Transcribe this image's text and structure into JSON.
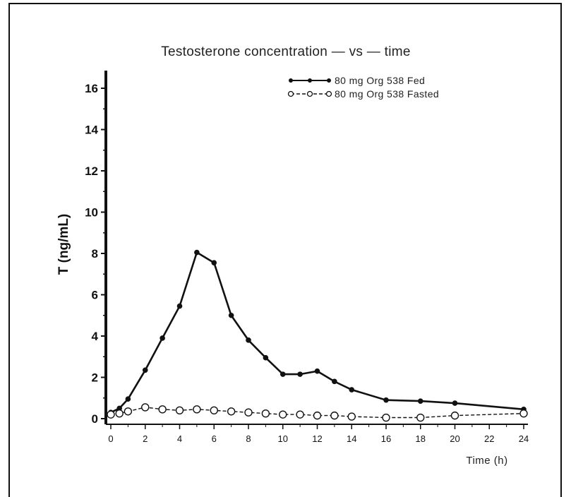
{
  "chart_data": {
    "type": "line",
    "title": "Testosterone  concentration — vs — time",
    "xlabel": "Time  (h)",
    "ylabel": "T (ng/mL)",
    "xlim": [
      0,
      24
    ],
    "ylim": [
      0,
      16
    ],
    "x_ticks": [
      0,
      2,
      4,
      6,
      8,
      10,
      12,
      14,
      16,
      18,
      20,
      22,
      24
    ],
    "y_ticks": [
      0,
      2,
      4,
      6,
      8,
      10,
      12,
      14,
      16
    ],
    "grid": false,
    "legend_position": "top-right",
    "series": [
      {
        "name": "80  mg  Org  538  Fed",
        "style": "solid",
        "marker": "filled-circle",
        "x": [
          0,
          0.5,
          1,
          2,
          3,
          4,
          5,
          6,
          7,
          8,
          9,
          10,
          11,
          12,
          13,
          14,
          16,
          18,
          20,
          24
        ],
        "y": [
          0.3,
          0.5,
          0.95,
          2.35,
          3.9,
          5.45,
          8.05,
          7.55,
          5.0,
          3.8,
          2.95,
          2.15,
          2.15,
          2.3,
          1.8,
          1.4,
          0.9,
          0.85,
          0.75,
          0.45
        ]
      },
      {
        "name": "80  mg  Org  538  Fasted",
        "style": "dashed",
        "marker": "open-circle",
        "x": [
          0,
          0.5,
          1,
          2,
          3,
          4,
          5,
          6,
          7,
          8,
          9,
          10,
          11,
          12,
          13,
          14,
          16,
          18,
          20,
          24
        ],
        "y": [
          0.2,
          0.25,
          0.35,
          0.55,
          0.45,
          0.4,
          0.45,
          0.4,
          0.35,
          0.3,
          0.25,
          0.2,
          0.2,
          0.15,
          0.15,
          0.1,
          0.05,
          0.05,
          0.15,
          0.25
        ]
      }
    ]
  }
}
